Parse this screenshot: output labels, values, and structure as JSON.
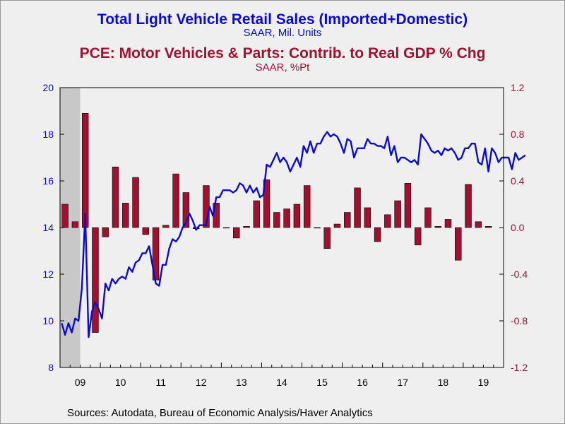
{
  "titles": {
    "main_title": "Total Light Vehicle Retail Sales (Imported+Domestic)",
    "main_subtitle": "SAAR, Mil. Units",
    "second_title": "PCE: Motor Vehicles & Parts: Contrib. to Real GDP % Chg",
    "second_subtitle": "SAAR, %Pt"
  },
  "source_text": "Sources:  Autodata, Bureau of Economic Analysis/Haver Analytics",
  "colors": {
    "line": "#0b0bd0",
    "bar": "#9e1230",
    "bar_stroke": "#000000",
    "recession_shade": "#c8c8c8",
    "plot_bg": "#efefef"
  },
  "chart_data": {
    "type": "bar",
    "grid": false,
    "legend": "none",
    "x_axis": {
      "range": [
        "2009-01",
        "2019-12"
      ],
      "tick_labels": [
        "09",
        "10",
        "11",
        "12",
        "13",
        "14",
        "15",
        "16",
        "17",
        "18",
        "19"
      ]
    },
    "left_axis": {
      "ylim": [
        8,
        20
      ],
      "ticks": [
        8,
        10,
        12,
        14,
        16,
        18,
        20
      ]
    },
    "right_axis": {
      "ylim": [
        -1.2,
        1.2
      ],
      "ticks": [
        "-1.2",
        "-0.8",
        "-0.4",
        "0.0",
        "0.4",
        "0.8",
        "1.2"
      ]
    },
    "recession_shading": {
      "start": "2009-01",
      "end": "2009-06"
    },
    "series": [
      {
        "name": "Total Light Vehicle Retail Sales (Imported+Domestic)",
        "type": "line",
        "axis": "left",
        "frequency": "monthly",
        "start": "2009-01",
        "values": [
          9.9,
          9.4,
          9.9,
          9.5,
          10.1,
          10.0,
          11.4,
          14.6,
          9.3,
          10.4,
          10.8,
          10.5,
          10.1,
          11.6,
          11.3,
          11.8,
          11.6,
          11.8,
          11.9,
          11.8,
          12.3,
          12.1,
          12.5,
          12.6,
          12.9,
          12.9,
          13.2,
          12.4,
          11.6,
          11.5,
          12.4,
          12.4,
          13.1,
          13.5,
          13.4,
          13.6,
          14.0,
          14.2,
          14.6,
          14.3,
          13.9,
          14.1,
          14.1,
          14.1,
          14.9,
          14.5,
          15.3,
          15.3,
          15.6,
          15.6,
          15.6,
          15.5,
          15.6,
          15.9,
          15.8,
          15.5,
          15.8,
          15.5,
          15.7,
          15.3,
          15.4,
          16.7,
          16.6,
          16.9,
          17.2,
          16.8,
          17.0,
          16.8,
          16.4,
          16.7,
          17.0,
          16.6,
          17.5,
          17.2,
          17.7,
          17.2,
          17.6,
          17.6,
          17.9,
          18.1,
          17.9,
          18.0,
          17.9,
          17.6,
          17.2,
          17.8,
          17.7,
          17.0,
          17.4,
          17.4,
          17.4,
          17.8,
          17.6,
          17.6,
          17.5,
          17.5,
          17.4,
          17.9,
          17.1,
          17.5,
          16.8,
          17.0,
          17.0,
          16.9,
          16.8,
          16.9,
          16.7,
          18.0,
          17.8,
          17.6,
          17.3,
          17.2,
          17.3,
          17.1,
          17.4,
          17.3,
          17.4,
          17.2,
          16.9,
          17.0,
          17.4,
          17.4,
          17.6,
          17.6,
          16.8,
          16.7,
          17.4,
          16.4,
          17.4,
          17.2,
          16.8,
          17.0,
          17.0,
          17.0,
          16.5,
          17.2,
          16.9,
          17.0,
          17.1
        ]
      },
      {
        "name": "PCE: Motor Vehicles & Parts: Contrib. to Real GDP % Chg",
        "type": "bar",
        "axis": "right",
        "frequency": "quarterly",
        "start": "2009-Q1",
        "values": [
          0.2,
          0.05,
          0.98,
          -0.9,
          -0.08,
          0.52,
          0.21,
          0.43,
          -0.06,
          -0.45,
          0.02,
          0.46,
          0.3,
          -0.01,
          0.36,
          0.21,
          0.0,
          -0.09,
          0.01,
          0.23,
          0.41,
          0.13,
          0.16,
          0.2,
          0.36,
          0.0,
          -0.18,
          0.03,
          0.13,
          0.34,
          0.17,
          -0.12,
          0.11,
          0.23,
          0.38,
          -0.15,
          0.17,
          0.01,
          0.07,
          -0.28,
          0.37,
          0.05,
          0.01
        ]
      }
    ]
  }
}
